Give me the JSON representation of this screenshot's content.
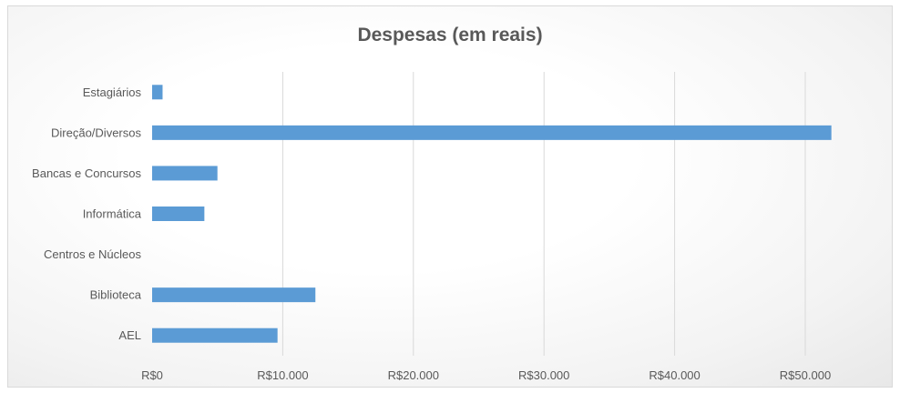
{
  "chart_data": {
    "type": "bar",
    "orientation": "horizontal",
    "title": "Despesas (em reais)",
    "xlabel": "",
    "ylabel": "",
    "categories": [
      "Estagiários",
      "Direção/Diversos",
      "Bancas e Concursos",
      "Informática",
      "Centros e Núcleos",
      "Biblioteca",
      "AEL"
    ],
    "values": [
      800,
      52000,
      5000,
      4000,
      0,
      12500,
      9600
    ],
    "xlim": [
      0,
      50000
    ],
    "xticks": [
      0,
      10000,
      20000,
      30000,
      40000,
      50000
    ],
    "xtick_labels": [
      "R$0",
      "R$10.000",
      "R$20.000",
      "R$30.000",
      "R$40.000",
      "R$50.000"
    ],
    "grid": "vertical",
    "legend": "none",
    "bar_color": "#5b9bd5"
  }
}
